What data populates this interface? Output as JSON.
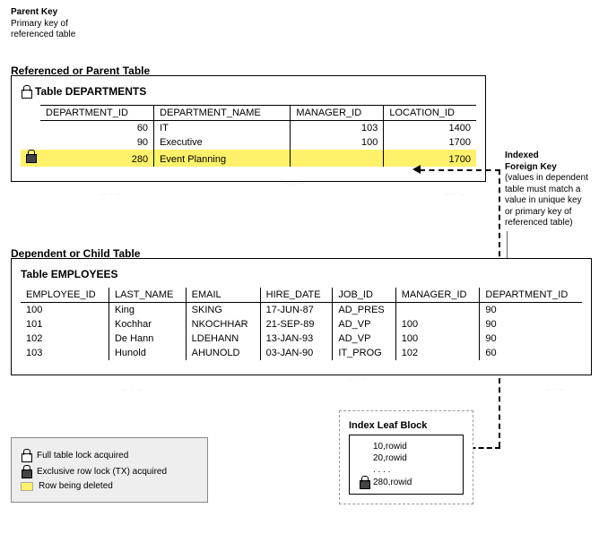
{
  "labels": {
    "parent_key_title": "Parent Key",
    "parent_key_sub": "Primary key of\nreferenced table",
    "parent_section": "Referenced or Parent Table",
    "child_section": "Dependent or Child Table",
    "dept_table": "Table DEPARTMENTS",
    "emp_table": "Table EMPLOYEES",
    "ifk_title": "Indexed\nForeign Key",
    "ifk_sub": "(values in dependent\ntable must match a\nvalue in unique key\nor primary key of\nreferenced table)",
    "ilb_title": "Index Leaf Block",
    "legend_full": "Full table lock acquired",
    "legend_tx": "Exclusive row lock (TX) acquired",
    "legend_del": "Row being deleted"
  },
  "dept": {
    "cols": [
      "DEPARTMENT_ID",
      "DEPARTMENT_NAME",
      "MANAGER_ID",
      "LOCATION_ID"
    ],
    "rows": [
      {
        "id": "60",
        "name": "IT",
        "mgr": "103",
        "loc": "1400",
        "hl": false,
        "lock": ""
      },
      {
        "id": "90",
        "name": "Executive",
        "mgr": "100",
        "loc": "1700",
        "hl": false,
        "lock": ""
      },
      {
        "id": "280",
        "name": "Event Planning",
        "mgr": "",
        "loc": "1700",
        "hl": true,
        "lock": "dark"
      }
    ]
  },
  "emp": {
    "cols": [
      "EMPLOYEE_ID",
      "LAST_NAME",
      "EMAIL",
      "HIRE_DATE",
      "JOB_ID",
      "MANAGER_ID",
      "DEPARTMENT_ID"
    ],
    "rows": [
      {
        "c": [
          "100",
          "King",
          "SKING",
          "17-JUN-87",
          "AD_PRES",
          "",
          "90"
        ]
      },
      {
        "c": [
          "101",
          "Kochhar",
          "NKOCHHAR",
          "21-SEP-89",
          "AD_VP",
          "100",
          "90"
        ]
      },
      {
        "c": [
          "102",
          "De Hann",
          "LDEHANN",
          "13-JAN-93",
          "AD_VP",
          "100",
          "90"
        ]
      },
      {
        "c": [
          "103",
          "Hunold",
          "AHUNOLD",
          "03-JAN-90",
          "IT_PROG",
          "102",
          "60"
        ]
      }
    ]
  },
  "ilb": {
    "lines": [
      "10,rowid",
      "20,rowid",
      ". . . .",
      "280,rowid"
    ],
    "lock_line": 3
  },
  "style": {
    "highlight": "#fff26a",
    "panel_border": "#000000",
    "dash_color": "#000000",
    "legend_bg": "#eeeeee"
  }
}
